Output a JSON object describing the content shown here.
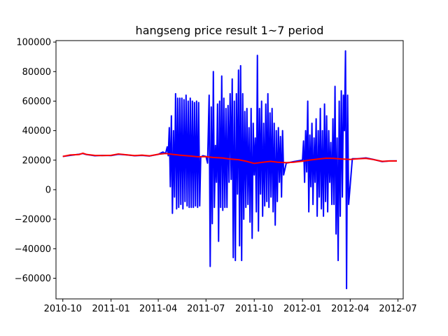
{
  "chart_data": {
    "type": "line",
    "title": "hangseng price result 1~7 period",
    "xlabel": "",
    "ylabel": "",
    "grid": false,
    "legend": "none",
    "x_axis_type": "date",
    "xlim": [
      "2010-09-18",
      "2012-07-11"
    ],
    "ylim": [
      -74000,
      101000
    ],
    "x_ticks": [
      {
        "date": "2010-10-01",
        "label": "2010-10"
      },
      {
        "date": "2011-01-01",
        "label": "2011-01"
      },
      {
        "date": "2011-04-01",
        "label": "2011-04"
      },
      {
        "date": "2011-07-01",
        "label": "2011-07"
      },
      {
        "date": "2011-10-01",
        "label": "2011-10"
      },
      {
        "date": "2012-01-01",
        "label": "2012-01"
      },
      {
        "date": "2012-04-01",
        "label": "2012-04"
      },
      {
        "date": "2012-07-01",
        "label": "2012-07"
      }
    ],
    "y_ticks": [
      -60000,
      -40000,
      -20000,
      0,
      20000,
      40000,
      60000,
      80000,
      100000
    ],
    "series": [
      {
        "color": "#0000ff",
        "points": [
          [
            "2010-10-01",
            22500
          ],
          [
            "2010-10-15",
            23200
          ],
          [
            "2010-11-01",
            24000
          ],
          [
            "2010-11-08",
            24500
          ],
          [
            "2010-11-15",
            23800
          ],
          [
            "2010-12-01",
            23000
          ],
          [
            "2010-12-15",
            23200
          ],
          [
            "2011-01-01",
            23100
          ],
          [
            "2011-01-15",
            24000
          ],
          [
            "2011-02-01",
            23500
          ],
          [
            "2011-02-15",
            23000
          ],
          [
            "2011-03-01",
            23200
          ],
          [
            "2011-03-15",
            22800
          ],
          [
            "2011-04-01",
            23900
          ],
          [
            "2011-04-10",
            25500
          ],
          [
            "2011-04-15",
            24500
          ],
          [
            "2011-04-18",
            29000
          ],
          [
            "2011-04-20",
            23000
          ],
          [
            "2011-04-22",
            42000
          ],
          [
            "2011-04-24",
            2000
          ],
          [
            "2011-04-26",
            50000
          ],
          [
            "2011-04-28",
            -16000
          ],
          [
            "2011-04-30",
            40000
          ],
          [
            "2011-05-02",
            -5000
          ],
          [
            "2011-05-04",
            65000
          ],
          [
            "2011-05-06",
            -13000
          ],
          [
            "2011-05-08",
            62000
          ],
          [
            "2011-05-10",
            -12000
          ],
          [
            "2011-05-12",
            62000
          ],
          [
            "2011-05-14",
            -10000
          ],
          [
            "2011-05-16",
            62000
          ],
          [
            "2011-05-18",
            -13000
          ],
          [
            "2011-05-20",
            61000
          ],
          [
            "2011-05-22",
            -8000
          ],
          [
            "2011-05-24",
            64000
          ],
          [
            "2011-05-26",
            -11000
          ],
          [
            "2011-05-28",
            60000
          ],
          [
            "2011-05-30",
            -12000
          ],
          [
            "2011-06-01",
            62000
          ],
          [
            "2011-06-03",
            -12000
          ],
          [
            "2011-06-05",
            60000
          ],
          [
            "2011-06-07",
            -12000
          ],
          [
            "2011-06-09",
            59000
          ],
          [
            "2011-06-11",
            -11000
          ],
          [
            "2011-06-13",
            60000
          ],
          [
            "2011-06-15",
            -12000
          ],
          [
            "2011-06-17",
            59000
          ],
          [
            "2011-06-19",
            -11000
          ],
          [
            "2011-06-21",
            22000
          ],
          [
            "2011-06-25",
            23000
          ],
          [
            "2011-07-01",
            22500
          ],
          [
            "2011-07-04",
            18000
          ],
          [
            "2011-07-07",
            64000
          ],
          [
            "2011-07-09",
            -52000
          ],
          [
            "2011-07-11",
            56000
          ],
          [
            "2011-07-13",
            -23000
          ],
          [
            "2011-07-15",
            80000
          ],
          [
            "2011-07-17",
            -12000
          ],
          [
            "2011-07-19",
            30000
          ],
          [
            "2011-07-21",
            5000
          ],
          [
            "2011-07-23",
            58000
          ],
          [
            "2011-07-25",
            -35000
          ],
          [
            "2011-07-27",
            60000
          ],
          [
            "2011-07-29",
            -12000
          ],
          [
            "2011-07-31",
            77000
          ],
          [
            "2011-08-02",
            -14000
          ],
          [
            "2011-08-04",
            62000
          ],
          [
            "2011-08-06",
            -12000
          ],
          [
            "2011-08-08",
            55000
          ],
          [
            "2011-08-10",
            -12000
          ],
          [
            "2011-08-12",
            57000
          ],
          [
            "2011-08-14",
            5000
          ],
          [
            "2011-08-16",
            65000
          ],
          [
            "2011-08-18",
            7000
          ],
          [
            "2011-08-20",
            75000
          ],
          [
            "2011-08-22",
            -46000
          ],
          [
            "2011-08-24",
            60000
          ],
          [
            "2011-08-26",
            -48000
          ],
          [
            "2011-08-28",
            65000
          ],
          [
            "2011-08-30",
            -3000
          ],
          [
            "2011-09-01",
            81000
          ],
          [
            "2011-09-03",
            -38000
          ],
          [
            "2011-09-05",
            84000
          ],
          [
            "2011-09-07",
            -48000
          ],
          [
            "2011-09-09",
            65000
          ],
          [
            "2011-09-11",
            -20000
          ],
          [
            "2011-09-13",
            53000
          ],
          [
            "2011-09-15",
            -12000
          ],
          [
            "2011-09-17",
            55000
          ],
          [
            "2011-09-19",
            -10000
          ],
          [
            "2011-09-21",
            42000
          ],
          [
            "2011-09-23",
            -22000
          ],
          [
            "2011-09-25",
            55000
          ],
          [
            "2011-09-27",
            -33000
          ],
          [
            "2011-09-29",
            45000
          ],
          [
            "2011-10-01",
            10000
          ],
          [
            "2011-10-03",
            35000
          ],
          [
            "2011-10-05",
            -15000
          ],
          [
            "2011-10-07",
            91000
          ],
          [
            "2011-10-09",
            -28000
          ],
          [
            "2011-10-11",
            55000
          ],
          [
            "2011-10-13",
            -3000
          ],
          [
            "2011-10-15",
            60000
          ],
          [
            "2011-10-17",
            -18000
          ],
          [
            "2011-10-19",
            45000
          ],
          [
            "2011-10-21",
            -11000
          ],
          [
            "2011-10-23",
            58000
          ],
          [
            "2011-10-25",
            -8000
          ],
          [
            "2011-10-27",
            65000
          ],
          [
            "2011-10-29",
            -12000
          ],
          [
            "2011-10-31",
            52000
          ],
          [
            "2011-11-02",
            -5000
          ],
          [
            "2011-11-04",
            55000
          ],
          [
            "2011-11-06",
            -15000
          ],
          [
            "2011-11-08",
            45000
          ],
          [
            "2011-11-10",
            -24000
          ],
          [
            "2011-11-12",
            40000
          ],
          [
            "2011-11-14",
            -8000
          ],
          [
            "2011-11-16",
            42000
          ],
          [
            "2011-11-18",
            5000
          ],
          [
            "2011-11-20",
            36000
          ],
          [
            "2011-11-22",
            -5000
          ],
          [
            "2011-11-24",
            40000
          ],
          [
            "2011-11-26",
            10000
          ],
          [
            "2011-12-01",
            18000
          ],
          [
            "2011-12-15",
            19000
          ],
          [
            "2012-01-01",
            20000
          ],
          [
            "2012-01-03",
            33000
          ],
          [
            "2012-01-05",
            5000
          ],
          [
            "2012-01-07",
            40000
          ],
          [
            "2012-01-09",
            12000
          ],
          [
            "2012-01-11",
            60000
          ],
          [
            "2012-01-13",
            -15000
          ],
          [
            "2012-01-15",
            37000
          ],
          [
            "2012-01-17",
            2000
          ],
          [
            "2012-01-19",
            45000
          ],
          [
            "2012-01-21",
            -10000
          ],
          [
            "2012-01-23",
            35000
          ],
          [
            "2012-01-25",
            5000
          ],
          [
            "2012-01-27",
            48000
          ],
          [
            "2012-01-29",
            -18000
          ],
          [
            "2012-01-31",
            40000
          ],
          [
            "2012-02-02",
            -5000
          ],
          [
            "2012-02-04",
            55000
          ],
          [
            "2012-02-06",
            -13000
          ],
          [
            "2012-02-08",
            40000
          ],
          [
            "2012-02-10",
            -18000
          ],
          [
            "2012-02-12",
            58000
          ],
          [
            "2012-02-14",
            -8000
          ],
          [
            "2012-02-16",
            50000
          ],
          [
            "2012-02-18",
            -15000
          ],
          [
            "2012-02-20",
            40000
          ],
          [
            "2012-02-22",
            5000
          ],
          [
            "2012-02-24",
            32000
          ],
          [
            "2012-02-26",
            -10000
          ],
          [
            "2012-02-28",
            48000
          ],
          [
            "2012-03-01",
            -10000
          ],
          [
            "2012-03-03",
            70000
          ],
          [
            "2012-03-05",
            -30000
          ],
          [
            "2012-03-07",
            35000
          ],
          [
            "2012-03-09",
            -48000
          ],
          [
            "2012-03-11",
            60000
          ],
          [
            "2012-03-13",
            -18000
          ],
          [
            "2012-03-15",
            67000
          ],
          [
            "2012-03-17",
            -5000
          ],
          [
            "2012-03-19",
            64000
          ],
          [
            "2012-03-21",
            40000
          ],
          [
            "2012-03-23",
            94000
          ],
          [
            "2012-03-24",
            30000
          ],
          [
            "2012-03-25",
            -67000
          ],
          [
            "2012-03-27",
            64000
          ],
          [
            "2012-03-29",
            -10000
          ],
          [
            "2012-04-05",
            21000
          ],
          [
            "2012-04-15",
            21000
          ],
          [
            "2012-05-01",
            21500
          ],
          [
            "2012-05-15",
            20500
          ],
          [
            "2012-06-01",
            19000
          ],
          [
            "2012-06-15",
            19500
          ],
          [
            "2012-06-29",
            19500
          ]
        ]
      },
      {
        "color": "#ff0000",
        "points": [
          [
            "2010-10-01",
            22500
          ],
          [
            "2010-10-15",
            23500
          ],
          [
            "2010-11-01",
            23800
          ],
          [
            "2010-11-08",
            24700
          ],
          [
            "2010-11-15",
            23900
          ],
          [
            "2010-12-01",
            23200
          ],
          [
            "2010-12-15",
            23100
          ],
          [
            "2011-01-01",
            23300
          ],
          [
            "2011-01-15",
            24200
          ],
          [
            "2011-02-01",
            23600
          ],
          [
            "2011-02-15",
            23100
          ],
          [
            "2011-03-01",
            23400
          ],
          [
            "2011-03-15",
            22900
          ],
          [
            "2011-04-01",
            24000
          ],
          [
            "2011-04-15",
            24500
          ],
          [
            "2011-05-01",
            23800
          ],
          [
            "2011-05-15",
            23300
          ],
          [
            "2011-06-01",
            22800
          ],
          [
            "2011-06-15",
            22300
          ],
          [
            "2011-07-01",
            22400
          ],
          [
            "2011-07-15",
            21800
          ],
          [
            "2011-08-01",
            21500
          ],
          [
            "2011-08-15",
            20800
          ],
          [
            "2011-09-01",
            20300
          ],
          [
            "2011-09-15",
            19300
          ],
          [
            "2011-10-01",
            17800
          ],
          [
            "2011-10-15",
            18500
          ],
          [
            "2011-11-01",
            19200
          ],
          [
            "2011-11-15",
            18600
          ],
          [
            "2011-12-01",
            18300
          ],
          [
            "2011-12-15",
            18600
          ],
          [
            "2012-01-01",
            19300
          ],
          [
            "2012-01-15",
            20100
          ],
          [
            "2012-02-01",
            20800
          ],
          [
            "2012-02-15",
            21300
          ],
          [
            "2012-03-01",
            21200
          ],
          [
            "2012-03-15",
            20800
          ],
          [
            "2012-04-01",
            20500
          ],
          [
            "2012-04-15",
            20900
          ],
          [
            "2012-05-01",
            21200
          ],
          [
            "2012-05-15",
            20400
          ],
          [
            "2012-06-01",
            19200
          ],
          [
            "2012-06-15",
            19400
          ],
          [
            "2012-06-29",
            19500
          ]
        ]
      }
    ]
  }
}
